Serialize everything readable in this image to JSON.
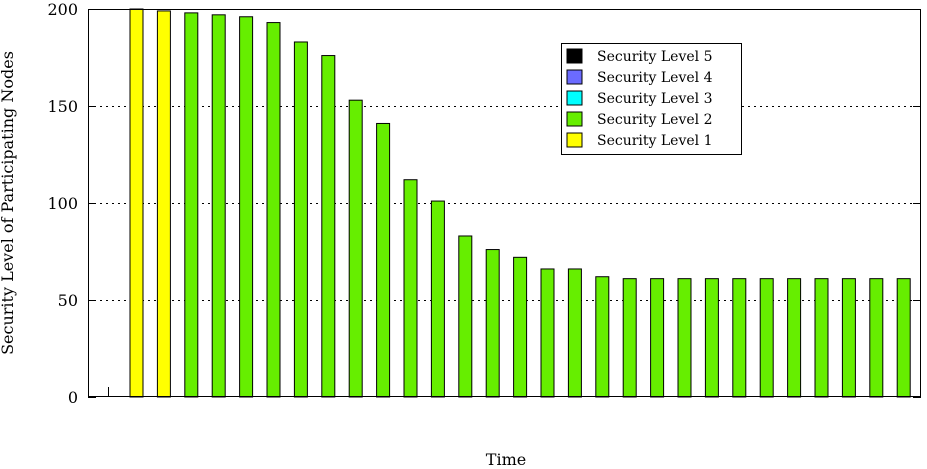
{
  "chart_data": {
    "type": "bar",
    "title": "",
    "xlabel": "Time",
    "ylabel": "Security Level of Participating Nodes",
    "ylim": [
      0,
      200
    ],
    "yticks": [
      0,
      50,
      100,
      150,
      200
    ],
    "grid": {
      "y": true,
      "style": "dotted"
    },
    "legend_position": "top-right",
    "legend": [
      {
        "name": "Security Level 5",
        "color": "#000000"
      },
      {
        "name": "Security Level 4",
        "color": "#6b6bff"
      },
      {
        "name": "Security Level 3",
        "color": "#00ffff"
      },
      {
        "name": "Security Level 2",
        "color": "#66ee00"
      },
      {
        "name": "Security Level 1",
        "color": "#ffff00"
      }
    ],
    "bars": [
      {
        "value": 200,
        "level": "Security Level 1"
      },
      {
        "value": 199,
        "level": "Security Level 1"
      },
      {
        "value": 198,
        "level": "Security Level 2"
      },
      {
        "value": 197,
        "level": "Security Level 2"
      },
      {
        "value": 196,
        "level": "Security Level 2"
      },
      {
        "value": 193,
        "level": "Security Level 2"
      },
      {
        "value": 183,
        "level": "Security Level 2"
      },
      {
        "value": 176,
        "level": "Security Level 2"
      },
      {
        "value": 153,
        "level": "Security Level 2"
      },
      {
        "value": 141,
        "level": "Security Level 2"
      },
      {
        "value": 112,
        "level": "Security Level 2"
      },
      {
        "value": 101,
        "level": "Security Level 2"
      },
      {
        "value": 83,
        "level": "Security Level 2"
      },
      {
        "value": 76,
        "level": "Security Level 2"
      },
      {
        "value": 72,
        "level": "Security Level 2"
      },
      {
        "value": 66,
        "level": "Security Level 2"
      },
      {
        "value": 66,
        "level": "Security Level 2"
      },
      {
        "value": 62,
        "level": "Security Level 2"
      },
      {
        "value": 61,
        "level": "Security Level 2"
      },
      {
        "value": 61,
        "level": "Security Level 2"
      },
      {
        "value": 61,
        "level": "Security Level 2"
      },
      {
        "value": 61,
        "level": "Security Level 2"
      },
      {
        "value": 61,
        "level": "Security Level 2"
      },
      {
        "value": 61,
        "level": "Security Level 2"
      },
      {
        "value": 61,
        "level": "Security Level 2"
      },
      {
        "value": 61,
        "level": "Security Level 2"
      },
      {
        "value": 61,
        "level": "Security Level 2"
      },
      {
        "value": 61,
        "level": "Security Level 2"
      },
      {
        "value": 61,
        "level": "Security Level 2"
      }
    ]
  }
}
